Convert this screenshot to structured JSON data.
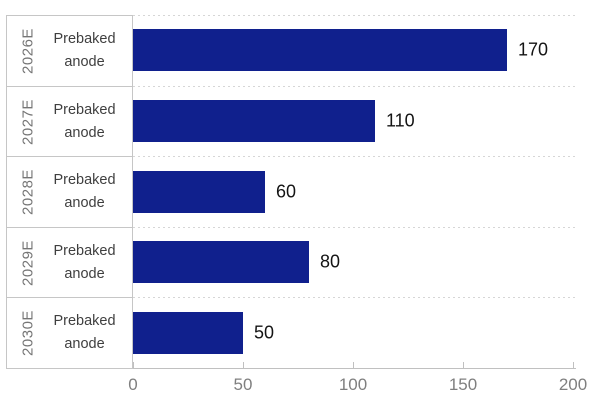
{
  "chart_data": {
    "type": "bar",
    "orientation": "horizontal",
    "title": "",
    "xlabel": "",
    "ylabel": "",
    "categories": [
      "2026E",
      "2027E",
      "2028E",
      "2029E",
      "2030E"
    ],
    "values": [
      170,
      110,
      60,
      80,
      50
    ],
    "rows": [
      {
        "year": "2026E",
        "label_line1": "Prebaked",
        "label_line2": "anode",
        "value": "170",
        "value_num": 170
      },
      {
        "year": "2027E",
        "label_line1": "Prebaked",
        "label_line2": "anode",
        "value": "110",
        "value_num": 110
      },
      {
        "year": "2028E",
        "label_line1": "Prebaked",
        "label_line2": "anode",
        "value": "60",
        "value_num": 60
      },
      {
        "year": "2029E",
        "label_line1": "Prebaked",
        "label_line2": "anode",
        "value": "80",
        "value_num": 80
      },
      {
        "year": "2030E",
        "label_line1": "Prebaked",
        "label_line2": "anode",
        "value": "50",
        "value_num": 50
      }
    ],
    "xlim": [
      0,
      200
    ],
    "xticks": [
      {
        "label": "0",
        "value": 0
      },
      {
        "label": "50",
        "value": 50
      },
      {
        "label": "100",
        "value": 100
      },
      {
        "label": "150",
        "value": 150
      },
      {
        "label": "200",
        "value": 200
      }
    ],
    "grid": "dashed horizontal separators between category rows",
    "legend": "none",
    "data_labels": "outside end of each bar"
  },
  "colors": {
    "bar": "#10208d",
    "category_box_border": "#c6c6c6",
    "gridline": "#d6d6d6",
    "axis_line": "#c0c0c0",
    "year_text": "#757575",
    "category_text": "#3f3f3f",
    "value_text": "#141414",
    "tick_label_text": "#7f7f7f",
    "background": "#ffffff"
  }
}
